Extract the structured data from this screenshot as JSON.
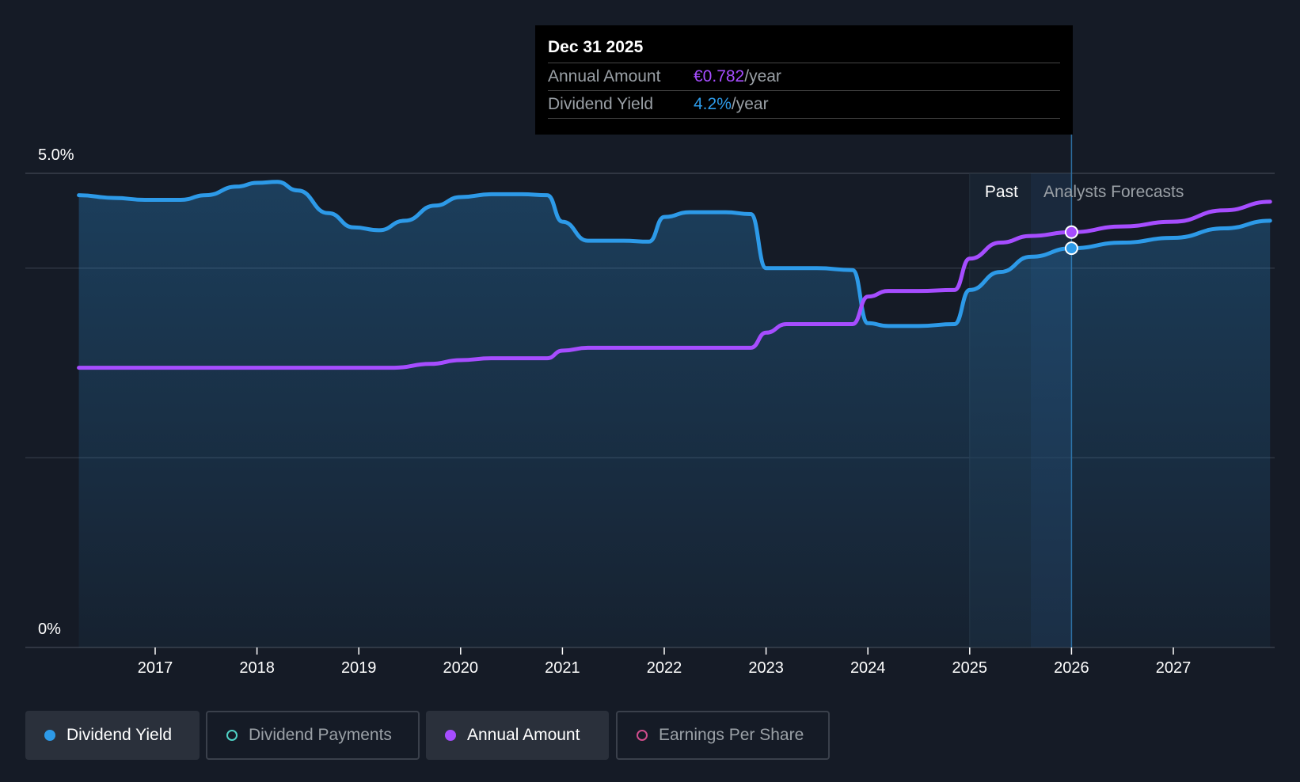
{
  "tooltip": {
    "date": "Dec 31 2025",
    "annual_label": "Annual Amount",
    "annual_value": "€0.782",
    "annual_unit": "/year",
    "yield_label": "Dividend Yield",
    "yield_value": "4.2%",
    "yield_unit": "/year"
  },
  "regions": {
    "past_label": "Past",
    "forecast_label": "Analysts Forecasts"
  },
  "legend": {
    "items": [
      {
        "label": "Dividend Yield",
        "color": "#2d9ae8",
        "active": true
      },
      {
        "label": "Dividend Payments",
        "color": "#4fd1c5",
        "active": false
      },
      {
        "label": "Annual Amount",
        "color": "#a64dff",
        "active": true
      },
      {
        "label": "Earnings Per Share",
        "color": "#d04d8c",
        "active": false
      }
    ]
  },
  "colors": {
    "background": "#151b26",
    "yield": "#2d9ae8",
    "annual": "#a64dff",
    "grid": "#2e3541"
  },
  "chart_data": {
    "type": "line",
    "title": "",
    "xlabel": "",
    "ylabel": "",
    "ylim": [
      0,
      5.0
    ],
    "xlim": [
      2016.25,
      2027.95
    ],
    "y_tick_labels": [
      "5.0%",
      "0%"
    ],
    "y_ticks": [
      5.0,
      0
    ],
    "x_ticks": [
      2017,
      2018,
      2019,
      2020,
      2021,
      2022,
      2023,
      2024,
      2025,
      2026,
      2027
    ],
    "x_tick_labels": [
      "2017",
      "2018",
      "2019",
      "2020",
      "2021",
      "2022",
      "2023",
      "2024",
      "2025",
      "2026",
      "2027"
    ],
    "past_range": [
      2025.0,
      2025.6
    ],
    "forecast_range": [
      2025.6,
      2026.0
    ],
    "cursor_x": 2026.0,
    "series": [
      {
        "name": "Dividend Yield",
        "x": [
          2016.25,
          2016.6,
          2016.9,
          2017.25,
          2017.5,
          2017.8,
          2018.0,
          2018.2,
          2018.4,
          2018.7,
          2018.95,
          2019.2,
          2019.45,
          2019.75,
          2020.0,
          2020.3,
          2020.6,
          2020.85,
          2021.0,
          2021.25,
          2021.6,
          2021.85,
          2022.0,
          2022.25,
          2022.6,
          2022.85,
          2023.0,
          2023.2,
          2023.5,
          2023.85,
          2024.0,
          2024.2,
          2024.5,
          2024.85,
          2025.0,
          2025.3,
          2025.6,
          2026.0,
          2026.5,
          2027.0,
          2027.5,
          2027.95
        ],
        "values": [
          4.77,
          4.74,
          4.72,
          4.72,
          4.77,
          4.86,
          4.9,
          4.91,
          4.82,
          4.58,
          4.43,
          4.4,
          4.5,
          4.66,
          4.75,
          4.78,
          4.78,
          4.77,
          4.49,
          4.29,
          4.29,
          4.28,
          4.54,
          4.59,
          4.59,
          4.57,
          4.0,
          4.0,
          4.0,
          3.98,
          3.42,
          3.39,
          3.39,
          3.41,
          3.77,
          3.96,
          4.12,
          4.21,
          4.27,
          4.32,
          4.42,
          4.5
        ]
      },
      {
        "name": "Annual Amount",
        "x": [
          2016.25,
          2017.0,
          2018.0,
          2019.0,
          2019.35,
          2019.7,
          2020.0,
          2020.3,
          2020.6,
          2020.85,
          2021.0,
          2021.25,
          2021.6,
          2022.0,
          2022.5,
          2022.85,
          2023.0,
          2023.2,
          2023.5,
          2023.85,
          2024.0,
          2024.2,
          2024.5,
          2024.85,
          2025.0,
          2025.3,
          2025.6,
          2026.0,
          2026.5,
          2027.0,
          2027.5,
          2027.95
        ],
        "values": [
          2.95,
          2.95,
          2.95,
          2.95,
          2.95,
          2.99,
          3.03,
          3.05,
          3.05,
          3.05,
          3.13,
          3.16,
          3.16,
          3.16,
          3.16,
          3.16,
          3.32,
          3.41,
          3.41,
          3.41,
          3.7,
          3.76,
          3.76,
          3.77,
          4.1,
          4.27,
          4.34,
          4.38,
          4.44,
          4.49,
          4.61,
          4.7
        ]
      }
    ]
  }
}
